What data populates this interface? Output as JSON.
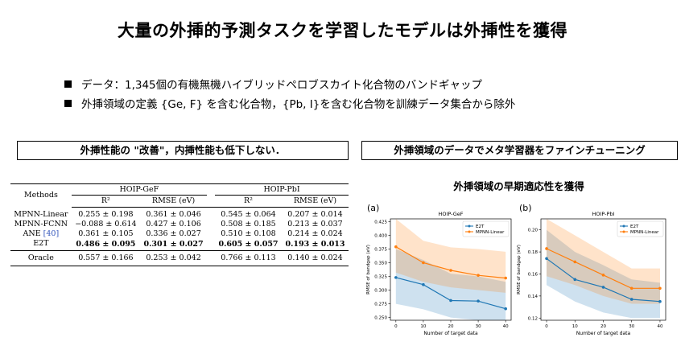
{
  "title": "大量の外挿的予測タスクを学習したモデルは外挿性を獲得",
  "bullets": [
    "データ：1,345個の有機無機ハイブリッドペロブスカイト化合物のバンドギャップ",
    "外挿領域の定義 {Ge, F} を含む化合物，{Pb, I}を含む化合物を訓練データ集合から除外"
  ],
  "left_heading": "外挿性能の \"改善\"，内挿性能も低下しない．",
  "right_heading": "外挿領域のデータでメタ学習器をファインチューニング",
  "adapt_title": "外挿領域の早期適応性を獲得",
  "table": {
    "methods_header": "Methods",
    "group1": "HOIP-GeF",
    "group2": "HOIP-PbI",
    "sub_r2": "R²",
    "sub_rmse": "RMSE (eV)",
    "rows": [
      {
        "method": "MPNN-Linear",
        "c1": "0.255 ± 0.198",
        "c2": "0.361 ± 0.046",
        "c3": "0.545 ± 0.064",
        "c4": "0.207 ± 0.014"
      },
      {
        "method": "MPNN-FCNN",
        "c1": "−0.088 ± 0.614",
        "c2": "0.427 ± 0.106",
        "c3": "0.508 ± 0.185",
        "c4": "0.213 ± 0.037"
      },
      {
        "method": "ANE",
        "cite": "[40]",
        "c1": "0.361 ± 0.105",
        "c2": "0.336 ± 0.027",
        "c3": "0.510 ± 0.108",
        "c4": "0.214 ± 0.024"
      },
      {
        "method": "E2T",
        "c1": "0.486 ± 0.095",
        "c2": "0.301 ± 0.027",
        "c3": "0.605 ± 0.057",
        "c4": "0.193 ± 0.013"
      }
    ],
    "oracle": {
      "method": "Oracle",
      "c1": "0.557 ± 0.166",
      "c2": "0.253 ± 0.042",
      "c3": "0.766 ± 0.113",
      "c4": "0.140 ± 0.024"
    }
  },
  "chart_data": [
    {
      "type": "line",
      "panel_label": "(a)",
      "title": "HOIP-GeF",
      "xlabel": "Number of target data",
      "ylabel": "RMSE of bandgap (eV)",
      "x": [
        0,
        10,
        20,
        30,
        40
      ],
      "xticks": [
        "0",
        "10",
        "20",
        "30",
        "40"
      ],
      "ylim": [
        0.245,
        0.43
      ],
      "yticks": [
        "0.250",
        "0.275",
        "0.300",
        "0.325",
        "0.350",
        "0.375",
        "0.400",
        "0.425"
      ],
      "series": [
        {
          "name": "E2T",
          "color": "#1f77b4",
          "values": [
            0.323,
            0.31,
            0.281,
            0.28,
            0.266
          ],
          "lower": [
            0.275,
            0.265,
            0.25,
            0.245,
            0.245
          ],
          "upper": [
            0.375,
            0.355,
            0.33,
            0.325,
            0.315
          ]
        },
        {
          "name": "MPNN-Linear",
          "color": "#ff7f0e",
          "values": [
            0.379,
            0.35,
            0.336,
            0.327,
            0.322
          ],
          "lower": [
            0.332,
            0.315,
            0.305,
            0.3,
            0.295
          ],
          "upper": [
            0.43,
            0.39,
            0.378,
            0.375,
            0.37
          ]
        }
      ],
      "legend": "top-right"
    },
    {
      "type": "line",
      "panel_label": "(b)",
      "title": "HOIP-PbI",
      "xlabel": "Number of target data",
      "ylabel": "RMSE of bandgap (eV)",
      "x": [
        0,
        10,
        20,
        30,
        40
      ],
      "xticks": [
        "0",
        "10",
        "20",
        "30",
        "40"
      ],
      "ylim": [
        0.118,
        0.21
      ],
      "yticks": [
        "0.12",
        "0.14",
        "0.16",
        "0.18",
        "0.20"
      ],
      "series": [
        {
          "name": "E2T",
          "color": "#1f77b4",
          "values": [
            0.174,
            0.155,
            0.148,
            0.137,
            0.135
          ],
          "lower": [
            0.15,
            0.135,
            0.125,
            0.12,
            0.12
          ],
          "upper": [
            0.2,
            0.18,
            0.168,
            0.155,
            0.152
          ]
        },
        {
          "name": "MPNN-Linear",
          "color": "#ff7f0e",
          "values": [
            0.183,
            0.171,
            0.159,
            0.147,
            0.147
          ],
          "lower": [
            0.158,
            0.15,
            0.14,
            0.133,
            0.133
          ],
          "upper": [
            0.21,
            0.195,
            0.18,
            0.165,
            0.165
          ]
        }
      ],
      "legend": "top-right"
    }
  ]
}
